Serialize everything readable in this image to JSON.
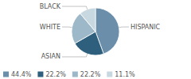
{
  "chart_data": {
    "type": "pie",
    "categories": [
      "HISPANIC",
      "ASIAN",
      "WHITE",
      "BLACK"
    ],
    "values": [
      44.4,
      22.2,
      22.2,
      11.1
    ],
    "value_labels": [
      "44.4%",
      "22.2%",
      "22.2%",
      "11.1%"
    ],
    "colors": [
      "#6b8faa",
      "#2e5f7c",
      "#9db8c8",
      "#c8d8e0"
    ],
    "legend": "lower left"
  }
}
